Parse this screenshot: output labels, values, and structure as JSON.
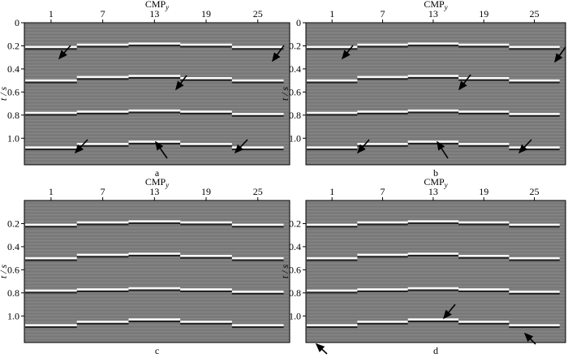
{
  "chart_data": [
    {
      "type": "seismic",
      "panel": "a",
      "xlabel": "CMP",
      "xlabel_sub": "y",
      "ylabel": "t / s",
      "xlim": [
        -2.1,
        28.7
      ],
      "ylim": [
        0,
        1.23
      ],
      "xticks": [
        1,
        7,
        13,
        19,
        25
      ],
      "yticks": [
        0,
        0.2,
        0.4,
        0.6,
        0.8,
        {
          "value": 1,
          "label": "1.0"
        }
      ],
      "x": [
        1,
        7,
        13,
        19,
        25
      ],
      "horizons": [
        [
          0.21,
          0.19,
          0.18,
          0.19,
          0.21
        ],
        [
          0.5,
          0.47,
          0.46,
          0.48,
          0.5
        ],
        [
          0.78,
          0.77,
          0.76,
          0.77,
          0.79
        ],
        [
          1.08,
          1.05,
          1.03,
          1.05,
          1.08
        ]
      ]
    },
    {
      "type": "seismic",
      "panel": "b",
      "xlabel": "CMP",
      "xlabel_sub": "y",
      "ylabel": "t / s",
      "xlim": [
        -2.1,
        28.7
      ],
      "ylim": [
        0,
        1.23
      ],
      "xticks": [
        1,
        7,
        13,
        19,
        25
      ],
      "yticks": [
        0,
        0.2,
        0.4,
        0.6,
        0.8,
        {
          "value": 1,
          "label": "1.0"
        }
      ],
      "x": [
        1,
        7,
        13,
        19,
        25
      ],
      "horizons": [
        [
          0.21,
          0.19,
          0.18,
          0.19,
          0.21
        ],
        [
          0.5,
          0.47,
          0.46,
          0.48,
          0.5
        ],
        [
          0.78,
          0.77,
          0.76,
          0.77,
          0.79
        ],
        [
          1.08,
          1.05,
          1.03,
          1.05,
          1.08
        ]
      ]
    },
    {
      "type": "seismic",
      "panel": "c",
      "xlabel": "CMP",
      "xlabel_sub": "y",
      "ylabel": "t / s",
      "xlim": [
        -2.1,
        28.7
      ],
      "ylim": [
        0,
        1.23
      ],
      "xticks": [
        1,
        7,
        13,
        19,
        25
      ],
      "yticks": [
        0.2,
        0.4,
        0.6,
        0.8,
        {
          "value": 1,
          "label": "1.0"
        }
      ],
      "x": [
        1,
        7,
        13,
        19,
        25
      ],
      "horizons": [
        [
          0.21,
          0.19,
          0.18,
          0.19,
          0.21
        ],
        [
          0.5,
          0.47,
          0.46,
          0.48,
          0.5
        ],
        [
          0.78,
          0.77,
          0.76,
          0.77,
          0.79
        ],
        [
          1.08,
          1.05,
          1.03,
          1.05,
          1.08
        ]
      ]
    },
    {
      "type": "seismic",
      "panel": "d",
      "xlabel": "CMP",
      "xlabel_sub": "y",
      "ylabel": "t / s",
      "xlim": [
        -2.1,
        28.7
      ],
      "ylim": [
        0,
        1.23
      ],
      "xticks": [
        1,
        7,
        13,
        19,
        25
      ],
      "yticks": [
        0.2,
        0.4,
        0.6,
        0.8,
        {
          "value": 1,
          "label": "1.0"
        }
      ],
      "x": [
        1,
        7,
        13,
        19,
        25
      ],
      "horizons": [
        [
          0.21,
          0.19,
          0.18,
          0.19,
          0.21
        ],
        [
          0.5,
          0.47,
          0.46,
          0.48,
          0.5
        ],
        [
          0.78,
          0.77,
          0.76,
          0.77,
          0.79
        ],
        [
          1.08,
          1.05,
          1.03,
          1.05,
          1.08
        ]
      ]
    }
  ]
}
